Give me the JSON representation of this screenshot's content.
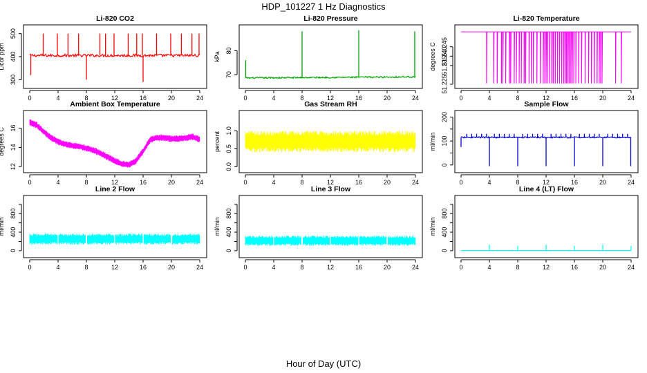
{
  "figure": {
    "title": "HDP_101227  1 Hz Diagnostics",
    "xlabel": "Hour of Day (UTC)"
  },
  "chart_data": [
    {
      "type": "line",
      "title": "Li-820 CO2",
      "ylabel": "Licor ppm",
      "color": "#ff0000",
      "xlim": [
        0,
        24
      ],
      "xticks": [
        0,
        4,
        8,
        12,
        16,
        20,
        24
      ],
      "ylim": [
        280,
        520
      ],
      "yticks": [
        300,
        400,
        500
      ],
      "baseline": [
        405,
        405
      ],
      "noise": 6,
      "style": "spiky",
      "spikes_up": [
        [
          1.9,
          500
        ],
        [
          3.9,
          500
        ],
        [
          5.4,
          500
        ],
        [
          6.9,
          500
        ],
        [
          9.9,
          500
        ],
        [
          10.7,
          500
        ],
        [
          11.9,
          500
        ],
        [
          13.9,
          500
        ],
        [
          15.1,
          500
        ],
        [
          15.9,
          500
        ],
        [
          17.9,
          500
        ],
        [
          19.9,
          500
        ],
        [
          21.4,
          500
        ],
        [
          22.9,
          500
        ],
        [
          23.9,
          500
        ]
      ],
      "spikes_down": [
        [
          0.15,
          320
        ],
        [
          8.0,
          300
        ],
        [
          16.0,
          290
        ]
      ],
      "series": [
        {
          "name": "CO2",
          "x": [
            0,
            4,
            8,
            12,
            16,
            20,
            24
          ],
          "y": [
            405,
            405,
            405,
            405,
            405,
            405,
            405
          ]
        }
      ]
    },
    {
      "type": "line",
      "title": "Li-820 Pressure",
      "ylabel": "kPa",
      "color": "#00a000",
      "xlim": [
        0,
        24
      ],
      "xticks": [
        0,
        4,
        8,
        12,
        16,
        20,
        24
      ],
      "ylim": [
        66,
        89
      ],
      "yticks": [
        70,
        80
      ],
      "baseline": [
        68.6,
        69.1
      ],
      "noise": 0.3,
      "style": "spiky",
      "spikes_up": [
        [
          0.05,
          76
        ],
        [
          8.0,
          88
        ],
        [
          16.0,
          88.5
        ],
        [
          23.9,
          88
        ]
      ],
      "spikes_down": [],
      "series": [
        {
          "name": "Pressure",
          "x": [
            0,
            24
          ],
          "y": [
            68.6,
            69.1
          ]
        }
      ]
    },
    {
      "type": "line",
      "title": "Li-820 Temperature",
      "ylabel": "degrees C",
      "color": "#ff00ff",
      "xlim": [
        0,
        24
      ],
      "xticks": [
        0,
        4,
        8,
        12,
        16,
        20,
        24
      ],
      "ylim": [
        51.225,
        51.2545
      ],
      "yticks": [
        51.225,
        51.235,
        51.24,
        51.245
      ],
      "yticklabels": [
        "51.225",
        "51.235",
        "51.240",
        "51.245"
      ],
      "baseline": [
        51.253,
        51.253
      ],
      "noise": 0,
      "style": "dropouts",
      "drop_to": 51.2255,
      "drop_x": [
        3.6,
        4.6,
        5.1,
        5.7,
        5.9,
        6.3,
        6.8,
        7.0,
        7.5,
        7.8,
        8.2,
        8.5,
        8.9,
        9.1,
        9.6,
        9.9,
        10.2,
        10.7,
        11.2,
        11.6,
        11.8,
        12.0,
        12.2,
        12.5,
        12.8,
        13.0,
        13.3,
        13.6,
        13.9,
        14.2,
        14.5,
        14.7,
        14.9,
        15.1,
        15.3,
        15.5,
        15.7,
        15.9,
        16.2,
        16.6,
        17.0,
        17.5,
        18.0,
        18.4,
        18.8,
        19.2,
        19.5,
        19.7,
        19.9,
        21.8,
        22.6
      ],
      "series": [
        {
          "name": "Temperature",
          "x": [
            0,
            24
          ],
          "y": [
            51.253,
            51.253
          ]
        }
      ]
    },
    {
      "type": "line",
      "title": "Ambient Box Temperature",
      "ylabel": "degrees C",
      "color": "#ff00ff",
      "xlim": [
        0,
        24
      ],
      "xticks": [
        0,
        4,
        8,
        12,
        16,
        20,
        24
      ],
      "ylim": [
        11.8,
        17.4
      ],
      "yticks": [
        12,
        14,
        16
      ],
      "noise": 0.35,
      "style": "band",
      "series": [
        {
          "name": "Box Temperature",
          "x": [
            0,
            1,
            2,
            3,
            4,
            5,
            6,
            7,
            8,
            9,
            10,
            11,
            12,
            13,
            14,
            15,
            16,
            17,
            18,
            19,
            20,
            21,
            22,
            23,
            24
          ],
          "y": [
            16.6,
            16.3,
            15.6,
            15.0,
            14.6,
            14.3,
            14.2,
            14.1,
            13.9,
            13.7,
            13.4,
            13.0,
            12.6,
            12.3,
            12.2,
            12.6,
            13.6,
            14.8,
            15.0,
            15.0,
            14.9,
            14.9,
            15.0,
            15.1,
            14.8
          ]
        }
      ]
    },
    {
      "type": "line",
      "title": "Gas Stream RH",
      "ylabel": "percent",
      "color": "#ffff00",
      "xlim": [
        0,
        24
      ],
      "xticks": [
        0,
        4,
        8,
        12,
        16,
        20,
        24
      ],
      "ylim": [
        -0.05,
        1.45
      ],
      "yticks": [
        0.0,
        0.5,
        1.0
      ],
      "yticklabels": [
        "0.0",
        "0.5",
        "1.0"
      ],
      "noise": 0.3,
      "style": "band",
      "series": [
        {
          "name": "RH",
          "x": [
            0,
            24
          ],
          "y": [
            0.7,
            0.7
          ]
        }
      ]
    },
    {
      "type": "line",
      "title": "Sample Flow",
      "ylabel": "ml/min",
      "color": "#0000cc",
      "xlim": [
        0,
        24
      ],
      "xticks": [
        0,
        4,
        8,
        12,
        16,
        20,
        24
      ],
      "ylim": [
        -15,
        210
      ],
      "yticks": [
        0,
        50,
        100,
        150,
        200
      ],
      "yticklabels": [
        "0",
        "",
        "100",
        "",
        "200"
      ],
      "baseline": [
        115,
        115
      ],
      "noise": 3,
      "style": "spiky",
      "spikes_up": [
        [
          0.8,
          130
        ],
        [
          1.5,
          130
        ],
        [
          2.2,
          130
        ],
        [
          2.9,
          130
        ],
        [
          3.6,
          130
        ],
        [
          4.7,
          130
        ],
        [
          5.4,
          130
        ],
        [
          6.1,
          130
        ],
        [
          6.8,
          130
        ],
        [
          7.5,
          130
        ],
        [
          8.7,
          130
        ],
        [
          9.4,
          130
        ],
        [
          10.1,
          130
        ],
        [
          10.8,
          130
        ],
        [
          11.5,
          130
        ],
        [
          12.7,
          130
        ],
        [
          13.4,
          130
        ],
        [
          14.1,
          130
        ],
        [
          14.8,
          130
        ],
        [
          15.5,
          130
        ],
        [
          16.7,
          130
        ],
        [
          17.4,
          130
        ],
        [
          18.1,
          130
        ],
        [
          18.8,
          130
        ],
        [
          19.5,
          130
        ],
        [
          20.7,
          130
        ],
        [
          21.4,
          130
        ],
        [
          22.1,
          130
        ],
        [
          22.8,
          130
        ],
        [
          23.5,
          130
        ]
      ],
      "spikes_down": [
        [
          0.0,
          75
        ],
        [
          4.0,
          -5
        ],
        [
          8.0,
          -5
        ],
        [
          12.0,
          -5
        ],
        [
          16.0,
          -5
        ],
        [
          20.0,
          -5
        ],
        [
          23.95,
          -5
        ]
      ],
      "series": [
        {
          "name": "Sample Flow",
          "x": [
            0,
            24
          ],
          "y": [
            115,
            115
          ]
        }
      ]
    },
    {
      "type": "line",
      "title": "Line 2 Flow",
      "ylabel": "ml/min",
      "color": "#00ffff",
      "xlim": [
        0,
        24
      ],
      "xticks": [
        0,
        4,
        8,
        12,
        16,
        20,
        24
      ],
      "ylim": [
        -60,
        1100
      ],
      "yticks": [
        0,
        200,
        400,
        600,
        800,
        1000
      ],
      "yticklabels": [
        "0",
        "",
        "400",
        "",
        "800",
        ""
      ],
      "noise": 120,
      "style": "band",
      "gaps": [
        4,
        8,
        12,
        16,
        20
      ],
      "series": [
        {
          "name": "Line 2 Flow",
          "x": [
            0,
            24
          ],
          "y": [
            250,
            250
          ]
        }
      ]
    },
    {
      "type": "line",
      "title": "Line 3 Flow",
      "ylabel": "ml/min",
      "color": "#00ffff",
      "xlim": [
        0,
        24
      ],
      "xticks": [
        0,
        4,
        8,
        12,
        16,
        20,
        24
      ],
      "ylim": [
        -60,
        1100
      ],
      "yticks": [
        0,
        200,
        400,
        600,
        800,
        1000
      ],
      "yticklabels": [
        "0",
        "",
        "400",
        "",
        "800",
        ""
      ],
      "noise": 110,
      "style": "band",
      "gaps": [
        4,
        8,
        12,
        16,
        20
      ],
      "series": [
        {
          "name": "Line 3 Flow",
          "x": [
            0,
            24
          ],
          "y": [
            215,
            215
          ]
        }
      ]
    },
    {
      "type": "line",
      "title": "Line 4 (LT) Flow",
      "ylabel": "ml/min",
      "color": "#00ffff",
      "xlim": [
        0,
        24
      ],
      "xticks": [
        0,
        4,
        8,
        12,
        16,
        20,
        24
      ],
      "ylim": [
        -60,
        1100
      ],
      "yticks": [
        0,
        200,
        400,
        600,
        800,
        1000
      ],
      "yticklabels": [
        "0",
        "",
        "400",
        "",
        "800",
        ""
      ],
      "baseline": [
        5,
        5
      ],
      "noise": 0,
      "style": "spiky",
      "spikes_up": [
        [
          4.0,
          130
        ],
        [
          8.0,
          100
        ],
        [
          12.0,
          130
        ],
        [
          16.0,
          100
        ],
        [
          20.0,
          130
        ],
        [
          24.0,
          100
        ]
      ],
      "spikes_down": [],
      "series": [
        {
          "name": "Line 4 Flow",
          "x": [
            0,
            24
          ],
          "y": [
            5,
            5
          ]
        }
      ]
    }
  ]
}
